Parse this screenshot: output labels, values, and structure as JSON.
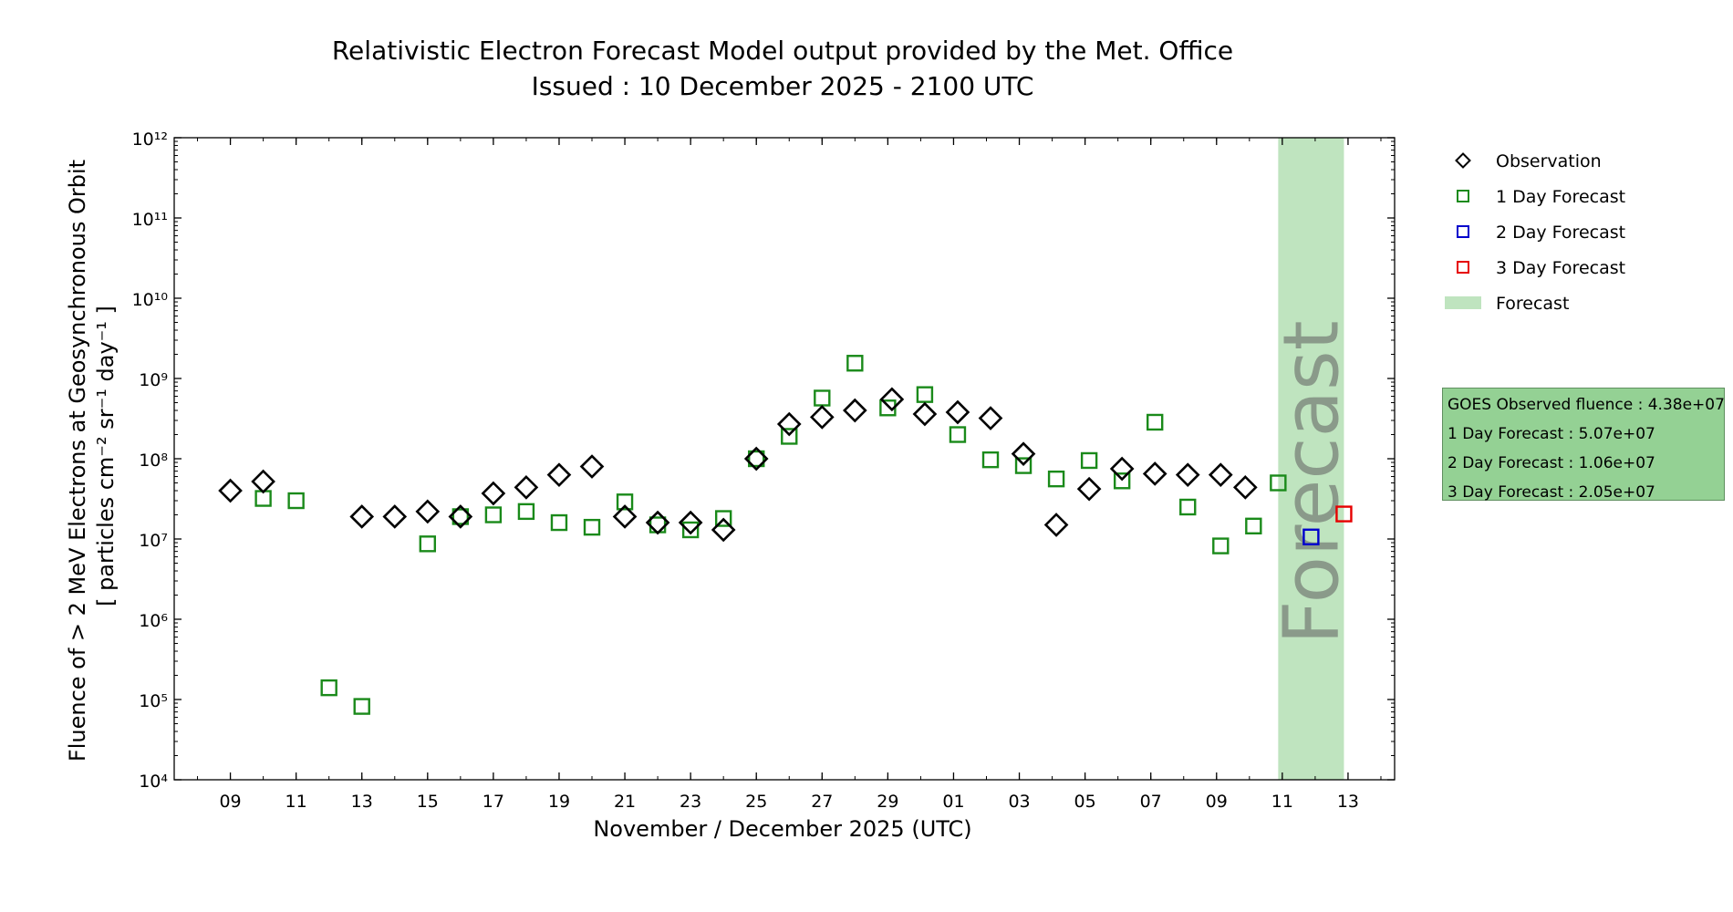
{
  "chart_data": {
    "type": "scatter",
    "title": "Relativistic Electron Forecast Model output provided by the Met. Office",
    "subtitle": "Issued : 10 December 2025 - 2100 UTC",
    "xlabel": "November / December 2025 (UTC)",
    "ylabel_line1": "Fluence of > 2 MeV Electrons at Geosynchronous Orbit",
    "ylabel_line2": "[ particles cm⁻² sr⁻¹ day⁻¹ ]",
    "y_scale": "log",
    "ylim": [
      10000,
      1000000000000
    ],
    "xlim": [
      "2025-11-07T07:00",
      "2025-12-14T10:00"
    ],
    "y_tick_labels": [
      "10⁴",
      "10⁵",
      "10⁶",
      "10⁷",
      "10⁸",
      "10⁹",
      "10¹⁰",
      "10¹¹",
      "10¹²"
    ],
    "x_tick_labels": [
      "09",
      "11",
      "13",
      "15",
      "17",
      "19",
      "21",
      "23",
      "25",
      "27",
      "29",
      "01",
      "03",
      "05",
      "07",
      "09",
      "11",
      "13"
    ],
    "x_tick_dates": [
      "2025-11-09",
      "2025-11-11",
      "2025-11-13",
      "2025-11-15",
      "2025-11-17",
      "2025-11-19",
      "2025-11-21",
      "2025-11-23",
      "2025-11-25",
      "2025-11-27",
      "2025-11-29",
      "2025-12-01",
      "2025-12-03",
      "2025-12-05",
      "2025-12-07",
      "2025-12-09",
      "2025-12-11",
      "2025-12-13"
    ],
    "grid": false,
    "legend_position": "right",
    "series": [
      {
        "name": "Observation",
        "marker": "diamond",
        "color": "#000000",
        "points": [
          {
            "x": "2025-11-09T00:00",
            "y": 40000000
          },
          {
            "x": "2025-11-10T00:00",
            "y": 52000000
          },
          {
            "x": "2025-11-13T00:00",
            "y": 19000000
          },
          {
            "x": "2025-11-14T00:00",
            "y": 19000000
          },
          {
            "x": "2025-11-15T00:00",
            "y": 22000000
          },
          {
            "x": "2025-11-16T00:00",
            "y": 19000000
          },
          {
            "x": "2025-11-17T00:00",
            "y": 37000000
          },
          {
            "x": "2025-11-18T00:00",
            "y": 44000000
          },
          {
            "x": "2025-11-19T00:00",
            "y": 63000000
          },
          {
            "x": "2025-11-20T00:00",
            "y": 80000000
          },
          {
            "x": "2025-11-21T00:00",
            "y": 19000000
          },
          {
            "x": "2025-11-22T00:00",
            "y": 16000000
          },
          {
            "x": "2025-11-23T00:00",
            "y": 16000000
          },
          {
            "x": "2025-11-24T00:00",
            "y": 13000000
          },
          {
            "x": "2025-11-25T00:00",
            "y": 100000000
          },
          {
            "x": "2025-11-26T00:00",
            "y": 270000000
          },
          {
            "x": "2025-11-27T00:00",
            "y": 330000000
          },
          {
            "x": "2025-11-28T00:00",
            "y": 400000000
          },
          {
            "x": "2025-11-29T03:00",
            "y": 550000000
          },
          {
            "x": "2025-11-30T03:00",
            "y": 360000000
          },
          {
            "x": "2025-12-01T03:00",
            "y": 380000000
          },
          {
            "x": "2025-12-02T03:00",
            "y": 320000000
          },
          {
            "x": "2025-12-03T03:00",
            "y": 115000000
          },
          {
            "x": "2025-12-04T03:00",
            "y": 15000000
          },
          {
            "x": "2025-12-05T03:00",
            "y": 42000000
          },
          {
            "x": "2025-12-06T03:00",
            "y": 75000000
          },
          {
            "x": "2025-12-07T03:00",
            "y": 65000000
          },
          {
            "x": "2025-12-08T03:00",
            "y": 63000000
          },
          {
            "x": "2025-12-09T03:00",
            "y": 63000000
          },
          {
            "x": "2025-12-09T21:00",
            "y": 44000000
          }
        ]
      },
      {
        "name": "1 Day Forecast",
        "marker": "square",
        "color": "#1a8a1a",
        "points": [
          {
            "x": "2025-11-10T00:00",
            "y": 32000000
          },
          {
            "x": "2025-11-11T00:00",
            "y": 30000000
          },
          {
            "x": "2025-11-12T00:00",
            "y": 140000
          },
          {
            "x": "2025-11-13T00:00",
            "y": 82000
          },
          {
            "x": "2025-11-15T00:00",
            "y": 8700000
          },
          {
            "x": "2025-11-16T00:00",
            "y": 19000000
          },
          {
            "x": "2025-11-17T00:00",
            "y": 20000000
          },
          {
            "x": "2025-11-18T00:00",
            "y": 22000000
          },
          {
            "x": "2025-11-19T00:00",
            "y": 16000000
          },
          {
            "x": "2025-11-20T00:00",
            "y": 14000000
          },
          {
            "x": "2025-11-21T00:00",
            "y": 29000000
          },
          {
            "x": "2025-11-22T00:00",
            "y": 15000000
          },
          {
            "x": "2025-11-23T00:00",
            "y": 13000000
          },
          {
            "x": "2025-11-24T00:00",
            "y": 18000000
          },
          {
            "x": "2025-11-25T00:00",
            "y": 100000000
          },
          {
            "x": "2025-11-26T00:00",
            "y": 190000000
          },
          {
            "x": "2025-11-27T00:00",
            "y": 570000000
          },
          {
            "x": "2025-11-28T00:00",
            "y": 1550000000
          },
          {
            "x": "2025-11-29T00:00",
            "y": 430000000
          },
          {
            "x": "2025-11-30T03:00",
            "y": 630000000
          },
          {
            "x": "2025-12-01T03:00",
            "y": 200000000
          },
          {
            "x": "2025-12-02T03:00",
            "y": 97000000
          },
          {
            "x": "2025-12-03T03:00",
            "y": 82000000
          },
          {
            "x": "2025-12-04T03:00",
            "y": 56000000
          },
          {
            "x": "2025-12-05T03:00",
            "y": 95000000
          },
          {
            "x": "2025-12-06T03:00",
            "y": 53000000
          },
          {
            "x": "2025-12-07T03:00",
            "y": 285000000
          },
          {
            "x": "2025-12-08T03:00",
            "y": 25000000
          },
          {
            "x": "2025-12-09T03:00",
            "y": 8200000
          },
          {
            "x": "2025-12-10T03:00",
            "y": 14500000
          },
          {
            "x": "2025-12-10T21:00",
            "y": 50000000
          }
        ]
      },
      {
        "name": "2 Day Forecast",
        "marker": "square",
        "color": "#0000cc",
        "points": [
          {
            "x": "2025-12-11T21:00",
            "y": 10600000
          }
        ]
      },
      {
        "name": "3 Day Forecast",
        "marker": "square",
        "color": "#e60000",
        "points": [
          {
            "x": "2025-12-12T21:00",
            "y": 20500000
          }
        ]
      }
    ],
    "forecast_span": {
      "name": "Forecast",
      "label": "Forecast",
      "x_start": "2025-12-10T21:00",
      "x_end": "2025-12-12T21:00",
      "color": "#bfe4bf",
      "label_color": "#8a9a8a"
    },
    "info_box": {
      "lines": [
        "GOES Observed fluence : 4.38e+07",
        "1 Day Forecast : 5.07e+07",
        "2 Day Forecast : 1.06e+07",
        "3 Day Forecast : 2.05e+07"
      ],
      "background": "#94d194"
    }
  }
}
